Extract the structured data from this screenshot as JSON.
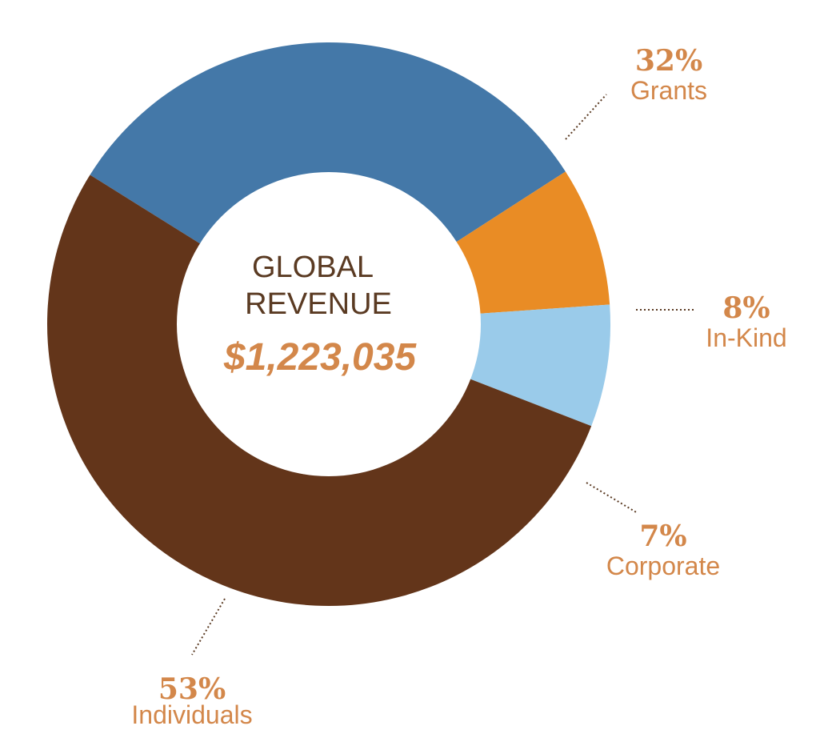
{
  "chart_data": {
    "type": "pie",
    "title": "GLOBAL REVENUE",
    "title_lines": [
      "GLOBAL",
      "REVENUE"
    ],
    "total": "$1,223,035",
    "slices": [
      {
        "name": "Grants",
        "value": 32,
        "label": "32%",
        "color": "#4478a8"
      },
      {
        "name": "In-Kind",
        "value": 8,
        "label": "8%",
        "color": "#e98c25"
      },
      {
        "name": "Corporate",
        "value": 7,
        "label": "7%",
        "color": "#9acbea"
      },
      {
        "name": "Individuals",
        "value": 53,
        "label": "53%",
        "color": "#63351a"
      }
    ]
  },
  "colors": {
    "label_text": "#d3874a",
    "center_title": "#5a3a22",
    "center_amount": "#d3874a",
    "leader_line": "#5a3a22"
  }
}
